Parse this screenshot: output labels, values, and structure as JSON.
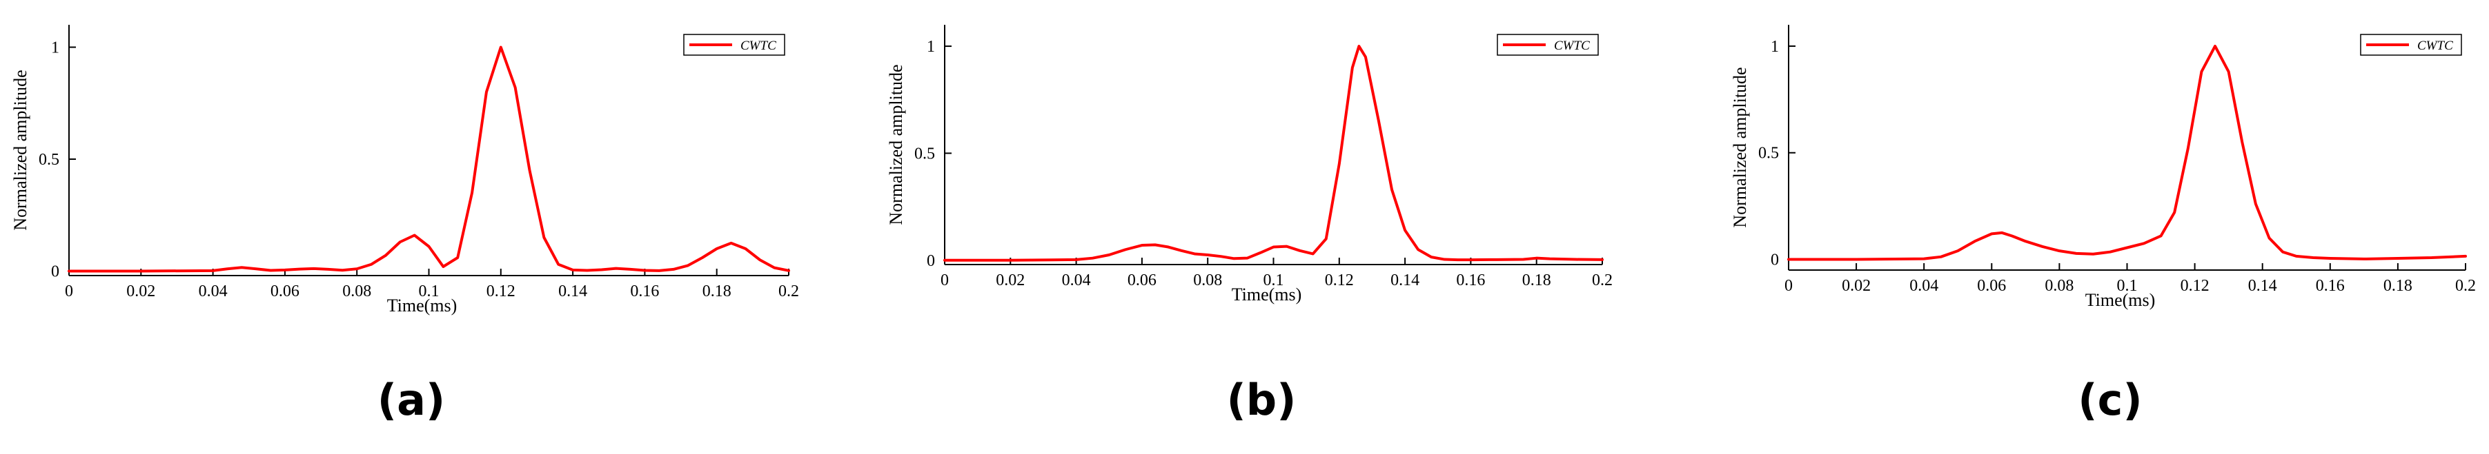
{
  "chart_data": [
    {
      "type": "line",
      "panel_label": "(a)",
      "xlabel": "Time(ms)",
      "ylabel": "Normalized amplitude",
      "xlim": [
        0,
        0.2
      ],
      "ylim": [
        -0.02,
        1.1
      ],
      "xticks": [
        "0",
        "0.02",
        "0.04",
        "0.06",
        "0.08",
        "0.1",
        "0.12",
        "0.14",
        "0.16",
        "0.18",
        "0.2"
      ],
      "yticks": [
        "0",
        "0.5",
        "1"
      ],
      "legend": "top-right",
      "series": [
        {
          "name": "CWTC",
          "color": "#ff0000",
          "x": [
            0,
            0.02,
            0.04,
            0.044,
            0.048,
            0.052,
            0.056,
            0.06,
            0.064,
            0.068,
            0.072,
            0.076,
            0.08,
            0.084,
            0.088,
            0.092,
            0.096,
            0.1,
            0.104,
            0.108,
            0.112,
            0.116,
            0.12,
            0.124,
            0.128,
            0.132,
            0.136,
            0.14,
            0.144,
            0.148,
            0.152,
            0.156,
            0.16,
            0.164,
            0.168,
            0.172,
            0.176,
            0.18,
            0.184,
            0.188,
            0.192,
            0.196,
            0.2
          ],
          "y": [
            0.0,
            0.0,
            0.002,
            0.01,
            0.016,
            0.01,
            0.003,
            0.005,
            0.009,
            0.011,
            0.008,
            0.004,
            0.01,
            0.03,
            0.07,
            0.13,
            0.16,
            0.11,
            0.02,
            0.06,
            0.35,
            0.8,
            1.0,
            0.82,
            0.45,
            0.15,
            0.03,
            0.005,
            0.003,
            0.006,
            0.012,
            0.008,
            0.003,
            0.002,
            0.008,
            0.025,
            0.06,
            0.1,
            0.125,
            0.1,
            0.05,
            0.015,
            0.002
          ]
        }
      ]
    },
    {
      "type": "line",
      "panel_label": "(b)",
      "xlabel": "Time(ms)",
      "ylabel": "Normalized amplitude",
      "xlim": [
        0,
        0.2
      ],
      "ylim": [
        -0.02,
        1.1
      ],
      "xticks": [
        "0",
        "0.02",
        "0.04",
        "0.06",
        "0.08",
        "0.1",
        "0.12",
        "0.14",
        "0.16",
        "0.18",
        "0.2"
      ],
      "yticks": [
        "0",
        "0.5",
        "1"
      ],
      "legend": "top-right",
      "series": [
        {
          "name": "CWTC",
          "color": "#ff0000",
          "x": [
            0,
            0.02,
            0.04,
            0.045,
            0.05,
            0.055,
            0.06,
            0.064,
            0.068,
            0.072,
            0.076,
            0.08,
            0.084,
            0.088,
            0.092,
            0.096,
            0.1,
            0.104,
            0.108,
            0.112,
            0.116,
            0.12,
            0.124,
            0.126,
            0.128,
            0.132,
            0.136,
            0.14,
            0.144,
            0.148,
            0.152,
            0.156,
            0.16,
            0.168,
            0.176,
            0.18,
            0.184,
            0.192,
            0.2
          ],
          "y": [
            0.0,
            0.0,
            0.003,
            0.01,
            0.025,
            0.05,
            0.07,
            0.072,
            0.062,
            0.045,
            0.03,
            0.025,
            0.018,
            0.008,
            0.01,
            0.035,
            0.062,
            0.065,
            0.045,
            0.03,
            0.1,
            0.45,
            0.9,
            1.0,
            0.95,
            0.65,
            0.33,
            0.14,
            0.05,
            0.015,
            0.004,
            0.002,
            0.002,
            0.003,
            0.004,
            0.01,
            0.007,
            0.004,
            0.003
          ]
        }
      ]
    },
    {
      "type": "line",
      "panel_label": "(c)",
      "xlabel": "Time(ms)",
      "ylabel": "Normalized amplitude",
      "xlim": [
        0,
        0.2
      ],
      "ylim": [
        -0.05,
        1.1
      ],
      "xticks": [
        "0",
        "0.02",
        "0.04",
        "0.06",
        "0.08",
        "0.1",
        "0.12",
        "0.14",
        "0.16",
        "0.18",
        "0.2"
      ],
      "yticks": [
        "0",
        "0.5",
        "1"
      ],
      "legend": "top-right",
      "series": [
        {
          "name": "CWTC",
          "color": "#ff0000",
          "x": [
            0,
            0.02,
            0.04,
            0.045,
            0.05,
            0.055,
            0.06,
            0.063,
            0.066,
            0.07,
            0.075,
            0.08,
            0.085,
            0.09,
            0.095,
            0.1,
            0.105,
            0.11,
            0.114,
            0.118,
            0.122,
            0.126,
            0.13,
            0.134,
            0.138,
            0.142,
            0.146,
            0.15,
            0.155,
            0.16,
            0.17,
            0.18,
            0.19,
            0.2
          ],
          "y": [
            0.0,
            0.0,
            0.003,
            0.012,
            0.04,
            0.085,
            0.12,
            0.125,
            0.11,
            0.085,
            0.06,
            0.04,
            0.028,
            0.025,
            0.035,
            0.055,
            0.075,
            0.11,
            0.22,
            0.52,
            0.88,
            1.0,
            0.88,
            0.55,
            0.26,
            0.1,
            0.035,
            0.015,
            0.008,
            0.005,
            0.002,
            0.005,
            0.008,
            0.015
          ]
        }
      ]
    }
  ]
}
